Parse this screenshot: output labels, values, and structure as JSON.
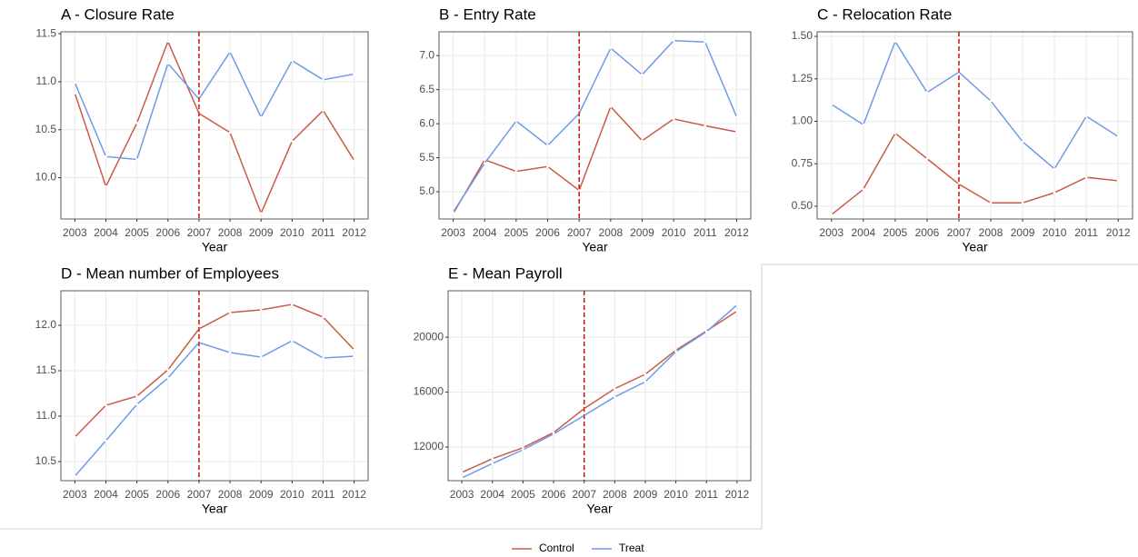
{
  "chart_data": [
    {
      "type": "line",
      "title": "A - Closure Rate",
      "xlabel": "Year",
      "x": [
        2003,
        2004,
        2005,
        2006,
        2007,
        2008,
        2009,
        2010,
        2011,
        2012
      ],
      "xlim": [
        2002.55,
        2012.45
      ],
      "xticks": [
        2003,
        2004,
        2005,
        2006,
        2007,
        2008,
        2009,
        2010,
        2011,
        2012
      ],
      "ylim": [
        9.57,
        11.52
      ],
      "yticks": [
        {
          "value": 10,
          "label": "10.0"
        },
        10.5,
        {
          "value": 11,
          "label": "11.0"
        },
        11.5
      ],
      "vline": 2007,
      "grid": true,
      "series": [
        {
          "name": "Control",
          "color": "#cb5a45",
          "values": [
            10.88,
            9.91,
            10.57,
            11.42,
            10.67,
            10.47,
            9.63,
            10.38,
            10.7,
            10.18
          ]
        },
        {
          "name": "Treat",
          "color": "#6f9ae8",
          "values": [
            10.99,
            10.22,
            10.19,
            11.19,
            10.82,
            11.31,
            10.63,
            11.22,
            11.02,
            11.08
          ]
        }
      ]
    },
    {
      "type": "line",
      "title": "B - Entry Rate",
      "xlabel": "Year",
      "x": [
        2003,
        2004,
        2005,
        2006,
        2007,
        2008,
        2009,
        2010,
        2011,
        2012
      ],
      "xlim": [
        2002.55,
        2012.45
      ],
      "xticks": [
        2003,
        2004,
        2005,
        2006,
        2007,
        2008,
        2009,
        2010,
        2011,
        2012
      ],
      "ylim": [
        4.6,
        7.35
      ],
      "yticks": [
        {
          "value": 5,
          "label": "5.0"
        },
        5.5,
        {
          "value": 6,
          "label": "6.0"
        },
        6.5,
        {
          "value": 7,
          "label": "7.0"
        }
      ],
      "vline": 2007,
      "grid": true,
      "series": [
        {
          "name": "Control",
          "color": "#cb5a45",
          "values": [
            4.68,
            5.47,
            5.3,
            5.37,
            5.02,
            6.25,
            5.75,
            6.07,
            5.97,
            5.88
          ]
        },
        {
          "name": "Treat",
          "color": "#6f9ae8",
          "values": [
            4.7,
            5.42,
            6.04,
            5.68,
            6.15,
            7.11,
            6.72,
            7.22,
            7.2,
            6.1
          ]
        }
      ]
    },
    {
      "type": "line",
      "title": "C - Relocation Rate",
      "xlabel": "Year",
      "x": [
        2003,
        2004,
        2005,
        2006,
        2007,
        2008,
        2009,
        2010,
        2011,
        2012
      ],
      "xlim": [
        2002.55,
        2012.45
      ],
      "xticks": [
        2003,
        2004,
        2005,
        2006,
        2007,
        2008,
        2009,
        2010,
        2011,
        2012
      ],
      "ylim": [
        0.425,
        1.527
      ],
      "yticks": [
        {
          "value": 0.5,
          "label": "0.50"
        },
        0.75,
        {
          "value": 1,
          "label": "1.00"
        },
        1.25,
        {
          "value": 1.5,
          "label": "1.50"
        }
      ],
      "vline": 2007,
      "grid": true,
      "series": [
        {
          "name": "Control",
          "color": "#cb5a45",
          "values": [
            0.45,
            0.6,
            0.93,
            0.78,
            0.63,
            0.52,
            0.52,
            0.58,
            0.67,
            0.65
          ]
        },
        {
          "name": "Treat",
          "color": "#6f9ae8",
          "values": [
            1.1,
            0.98,
            1.47,
            1.17,
            1.29,
            1.12,
            0.88,
            0.72,
            1.03,
            0.91
          ]
        }
      ]
    },
    {
      "type": "line",
      "title": "D - Mean number of Employees",
      "xlabel": "Year",
      "x": [
        2003,
        2004,
        2005,
        2006,
        2007,
        2008,
        2009,
        2010,
        2011,
        2012
      ],
      "xlim": [
        2002.55,
        2012.45
      ],
      "xticks": [
        2003,
        2004,
        2005,
        2006,
        2007,
        2008,
        2009,
        2010,
        2011,
        2012
      ],
      "ylim": [
        10.29,
        12.38
      ],
      "yticks": [
        10.5,
        {
          "value": 11,
          "label": "11.0"
        },
        11.5,
        {
          "value": 12,
          "label": "12.0"
        }
      ],
      "vline": 2007,
      "grid": true,
      "series": [
        {
          "name": "Control",
          "color": "#cb5a45",
          "values": [
            10.77,
            11.12,
            11.22,
            11.51,
            11.96,
            12.14,
            12.17,
            12.23,
            12.09,
            11.73
          ]
        },
        {
          "name": "Treat",
          "color": "#6f9ae8",
          "values": [
            10.34,
            10.73,
            11.13,
            11.42,
            11.81,
            11.7,
            11.65,
            11.83,
            11.64,
            11.66
          ]
        }
      ]
    },
    {
      "type": "line",
      "title": "E - Mean Payroll",
      "xlabel": "Year",
      "x": [
        2003,
        2004,
        2005,
        2006,
        2007,
        2008,
        2009,
        2010,
        2011,
        2012
      ],
      "xlim": [
        2002.55,
        2012.45
      ],
      "xticks": [
        2003,
        2004,
        2005,
        2006,
        2007,
        2008,
        2009,
        2010,
        2011,
        2012
      ],
      "ylim": [
        9550,
        23380
      ],
      "yticks": [
        12000,
        16000,
        20000
      ],
      "vline": 2007,
      "grid": true,
      "series": [
        {
          "name": "Control",
          "color": "#cb5a45",
          "values": [
            10150,
            11150,
            11950,
            13050,
            14800,
            16250,
            17300,
            19050,
            20450,
            21900
          ]
        },
        {
          "name": "Treat",
          "color": "#6f9ae8",
          "values": [
            9750,
            10800,
            11800,
            12950,
            14300,
            15650,
            16750,
            18950,
            20400,
            22350
          ]
        }
      ]
    }
  ]
}
